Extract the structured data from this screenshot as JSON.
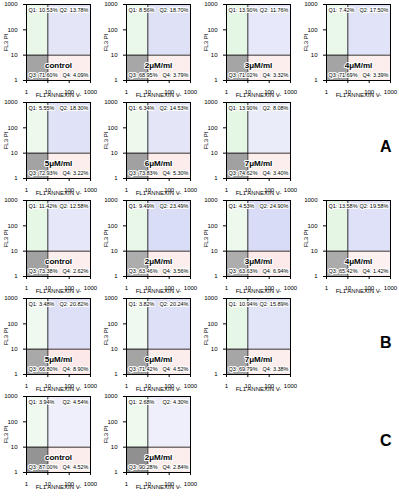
{
  "chart_data": [
    {
      "type": "quadrant",
      "group": "A",
      "title": "control",
      "xlabel": "FL1 ANNEXIN V-",
      "ylabel": "FL3 PI",
      "log": true,
      "xlim": [
        1,
        1000
      ],
      "ylim": [
        1,
        1000
      ],
      "xticks": [
        1,
        10,
        100,
        1000
      ],
      "yticks": [
        1,
        10,
        100,
        1000
      ],
      "gate": [
        10,
        10
      ],
      "categories": [
        "Q1",
        "Q2",
        "Q3",
        "Q4"
      ],
      "values": [
        10.53,
        13.78,
        71.6,
        4.09
      ],
      "value_labels": [
        "Q1: 10.53%",
        "Q2: 13.78%",
        "Q3: 71.60%",
        "Q4: 4.09%"
      ],
      "colors": [
        "#2db82d",
        "#2f3fcc",
        "#222222",
        "#e02020"
      ]
    },
    {
      "type": "quadrant",
      "group": "A",
      "title": "2μM/ml",
      "xlabel": "FL1 ANNEXIN V-",
      "ylabel": "FL3 PI",
      "log": true,
      "xlim": [
        1,
        1000
      ],
      "ylim": [
        1,
        1000
      ],
      "xticks": [
        1,
        10,
        100,
        1000
      ],
      "yticks": [
        1,
        10,
        100,
        1000
      ],
      "gate": [
        10,
        10
      ],
      "categories": [
        "Q1",
        "Q2",
        "Q3",
        "Q4"
      ],
      "values": [
        8.56,
        18.7,
        68.95,
        3.79
      ],
      "value_labels": [
        "Q1: 8.56%",
        "Q2: 18.70%",
        "Q3: 68.95%",
        "Q4: 3.79%"
      ],
      "colors": [
        "#2db82d",
        "#2f3fcc",
        "#222222",
        "#e02020"
      ]
    },
    {
      "type": "quadrant",
      "group": "A",
      "title": "3μM/ml",
      "xlabel": "FL1 ANNEXIN V-",
      "ylabel": "FL3 PI",
      "log": true,
      "xlim": [
        1,
        1000
      ],
      "ylim": [
        1,
        1000
      ],
      "xticks": [
        1,
        10,
        100,
        1000
      ],
      "yticks": [
        1,
        10,
        100,
        1000
      ],
      "gate": [
        10,
        10
      ],
      "categories": [
        "Q1",
        "Q2",
        "Q3",
        "Q4"
      ],
      "values": [
        13.9,
        11.76,
        71.02,
        3.32
      ],
      "value_labels": [
        "Q1: 13.90%",
        "Q2: 11.76%",
        "Q3: 71.02%",
        "Q4: 3.32%"
      ],
      "colors": [
        "#2db82d",
        "#2f3fcc",
        "#222222",
        "#e02020"
      ]
    },
    {
      "type": "quadrant",
      "group": "A",
      "title": "4μM/ml",
      "xlabel": "FL1 ANNEXIN V-",
      "ylabel": "FL3 PI",
      "log": true,
      "xlim": [
        1,
        1000
      ],
      "ylim": [
        1,
        1000
      ],
      "xticks": [
        1,
        10,
        100,
        1000
      ],
      "yticks": [
        1,
        10,
        100,
        1000
      ],
      "gate": [
        10,
        10
      ],
      "categories": [
        "Q1",
        "Q2",
        "Q3",
        "Q4"
      ],
      "values": [
        7.42,
        17.5,
        71.69,
        3.39
      ],
      "value_labels": [
        "Q1: 7.42%",
        "Q2: 17.50%",
        "Q3: 71.69%",
        "Q4: 3.39%"
      ],
      "colors": [
        "#2db82d",
        "#2f3fcc",
        "#222222",
        "#e02020"
      ]
    },
    {
      "type": "quadrant",
      "group": "A",
      "title": "5μM/ml",
      "xlabel": "FL1 ANNEXIN V-",
      "ylabel": "FL3 PI",
      "log": true,
      "xlim": [
        1,
        1000
      ],
      "ylim": [
        1,
        1000
      ],
      "xticks": [
        1,
        10,
        100,
        1000
      ],
      "yticks": [
        1,
        10,
        100,
        1000
      ],
      "gate": [
        10,
        10
      ],
      "categories": [
        "Q1",
        "Q2",
        "Q3",
        "Q4"
      ],
      "values": [
        5.55,
        18.3,
        72.93,
        3.22
      ],
      "value_labels": [
        "Q1: 5.55%",
        "Q2: 18.30%",
        "Q3: 72.93%",
        "Q4: 3.22%"
      ],
      "colors": [
        "#2db82d",
        "#2f3fcc",
        "#222222",
        "#e02020"
      ]
    },
    {
      "type": "quadrant",
      "group": "A",
      "title": "6μM/ml",
      "xlabel": "FL1 ANNEXIN V-",
      "ylabel": "FL3 PI",
      "log": true,
      "xlim": [
        1,
        1000
      ],
      "ylim": [
        1,
        1000
      ],
      "xticks": [
        1,
        10,
        100,
        1000
      ],
      "yticks": [
        1,
        10,
        100,
        1000
      ],
      "gate": [
        10,
        10
      ],
      "categories": [
        "Q1",
        "Q2",
        "Q3",
        "Q4"
      ],
      "values": [
        6.34,
        14.53,
        73.83,
        5.3
      ],
      "value_labels": [
        "Q1: 6.34%",
        "Q2: 14.53%",
        "Q3: 73.83%",
        "Q4: 5.30%"
      ],
      "colors": [
        "#2db82d",
        "#2f3fcc",
        "#222222",
        "#e02020"
      ]
    },
    {
      "type": "quadrant",
      "group": "A",
      "title": "7μM/ml",
      "xlabel": "FL1 ANNEXIN V-",
      "ylabel": "FL3 PI",
      "log": true,
      "xlim": [
        1,
        1000
      ],
      "ylim": [
        1,
        1000
      ],
      "xticks": [
        1,
        10,
        100,
        1000
      ],
      "yticks": [
        1,
        10,
        100,
        1000
      ],
      "gate": [
        10,
        10
      ],
      "categories": [
        "Q1",
        "Q2",
        "Q3",
        "Q4"
      ],
      "values": [
        13.9,
        8.08,
        74.62,
        3.4
      ],
      "value_labels": [
        "Q1: 13.90%",
        "Q2: 8.08%",
        "Q3: 74.62%",
        "Q4: 3.40%"
      ],
      "colors": [
        "#2db82d",
        "#2f3fcc",
        "#222222",
        "#e02020"
      ]
    },
    {
      "type": "quadrant",
      "group": "B",
      "title": "control",
      "xlabel": "FL1 ANNEXIN V-",
      "ylabel": "FL3 PI",
      "log": true,
      "xlim": [
        1,
        1000
      ],
      "ylim": [
        1,
        1000
      ],
      "xticks": [
        1,
        10,
        100,
        1000
      ],
      "yticks": [
        1,
        10,
        100,
        1000
      ],
      "gate": [
        10,
        10
      ],
      "categories": [
        "Q1",
        "Q2",
        "Q3",
        "Q4"
      ],
      "values": [
        11.42,
        12.58,
        73.38,
        2.62
      ],
      "value_labels": [
        "Q1: 11.42%",
        "Q2: 12.58%",
        "Q3: 73.38%",
        "Q4: 2.62%"
      ],
      "colors": [
        "#2db82d",
        "#2f3fcc",
        "#222222",
        "#e02020"
      ]
    },
    {
      "type": "quadrant",
      "group": "B",
      "title": "2μM/ml",
      "xlabel": "FL1 ANNEXIN V-",
      "ylabel": "FL3 PI",
      "log": true,
      "xlim": [
        1,
        1000
      ],
      "ylim": [
        1,
        1000
      ],
      "xticks": [
        1,
        10,
        100,
        1000
      ],
      "yticks": [
        1,
        10,
        100,
        1000
      ],
      "gate": [
        10,
        10
      ],
      "categories": [
        "Q1",
        "Q2",
        "Q3",
        "Q4"
      ],
      "values": [
        9.49,
        23.49,
        63.46,
        3.56
      ],
      "value_labels": [
        "Q1: 9.49%",
        "Q2: 23.49%",
        "Q3: 63.46%",
        "Q4: 3.56%"
      ],
      "colors": [
        "#2db82d",
        "#2f3fcc",
        "#222222",
        "#e02020"
      ]
    },
    {
      "type": "quadrant",
      "group": "B",
      "title": "3μM/ml",
      "xlabel": "FL1 ANNEXIN V-",
      "ylabel": "FL3 PI",
      "log": true,
      "xlim": [
        1,
        1000
      ],
      "ylim": [
        1,
        1000
      ],
      "xticks": [
        1,
        10,
        100,
        1000
      ],
      "yticks": [
        1,
        10,
        100,
        1000
      ],
      "gate": [
        10,
        10
      ],
      "categories": [
        "Q1",
        "Q2",
        "Q3",
        "Q4"
      ],
      "values": [
        4.53,
        24.9,
        63.63,
        6.94
      ],
      "value_labels": [
        "Q1: 4.53%",
        "Q2: 24.90%",
        "Q3: 63.63%",
        "Q4: 6.94%"
      ],
      "colors": [
        "#2db82d",
        "#2f3fcc",
        "#222222",
        "#e02020"
      ]
    },
    {
      "type": "quadrant",
      "group": "B",
      "title": "4μM/ml",
      "xlabel": "FL1 ANNEXIN V-",
      "ylabel": "FL3 PI",
      "log": true,
      "xlim": [
        1,
        1000
      ],
      "ylim": [
        1,
        1000
      ],
      "xticks": [
        1,
        10,
        100,
        1000
      ],
      "yticks": [
        1,
        10,
        100,
        1000
      ],
      "gate": [
        10,
        10
      ],
      "categories": [
        "Q1",
        "Q2",
        "Q3",
        "Q4"
      ],
      "values": [
        13.58,
        19.58,
        65.42,
        1.42
      ],
      "value_labels": [
        "Q1: 13.58%",
        "Q2: 19.58%",
        "Q3: 65.42%",
        "Q4: 1.42%"
      ],
      "colors": [
        "#2db82d",
        "#2f3fcc",
        "#222222",
        "#e02020"
      ]
    },
    {
      "type": "quadrant",
      "group": "B",
      "title": "5μM/ml",
      "xlabel": "FL1 ANNEXIN V-",
      "ylabel": "FL3 PI",
      "log": true,
      "xlim": [
        1,
        1000
      ],
      "ylim": [
        1,
        1000
      ],
      "xticks": [
        1,
        10,
        100,
        1000
      ],
      "yticks": [
        1,
        10,
        100,
        1000
      ],
      "gate": [
        10,
        10
      ],
      "categories": [
        "Q1",
        "Q2",
        "Q3",
        "Q4"
      ],
      "values": [
        3.48,
        20.82,
        66.8,
        8.9
      ],
      "value_labels": [
        "Q1: 3.48%",
        "Q2: 20.82%",
        "Q3: 66.80%",
        "Q4: 8.90%"
      ],
      "colors": [
        "#2db82d",
        "#2f3fcc",
        "#222222",
        "#e02020"
      ]
    },
    {
      "type": "quadrant",
      "group": "B",
      "title": "6μM/ml",
      "xlabel": "FL1 ANNEXIN V-",
      "ylabel": "FL3 PI",
      "log": true,
      "xlim": [
        1,
        1000
      ],
      "ylim": [
        1,
        1000
      ],
      "xticks": [
        1,
        10,
        100,
        1000
      ],
      "yticks": [
        1,
        10,
        100,
        1000
      ],
      "gate": [
        10,
        10
      ],
      "categories": [
        "Q1",
        "Q2",
        "Q3",
        "Q4"
      ],
      "values": [
        3.82,
        20.24,
        71.42,
        4.52
      ],
      "value_labels": [
        "Q1: 3.82%",
        "Q2: 20.24%",
        "Q3: 71.42%",
        "Q4: 4.52%"
      ],
      "colors": [
        "#2db82d",
        "#2f3fcc",
        "#222222",
        "#e02020"
      ]
    },
    {
      "type": "quadrant",
      "group": "B",
      "title": "7μM/ml",
      "xlabel": "FL1 ANNEXIN V-",
      "ylabel": "FL3 PI",
      "log": true,
      "xlim": [
        1,
        1000
      ],
      "ylim": [
        1,
        1000
      ],
      "xticks": [
        1,
        10,
        100,
        1000
      ],
      "yticks": [
        1,
        10,
        100,
        1000
      ],
      "gate": [
        10,
        10
      ],
      "categories": [
        "Q1",
        "Q2",
        "Q3",
        "Q4"
      ],
      "values": [
        10.94,
        15.89,
        69.79,
        3.38
      ],
      "value_labels": [
        "Q1: 10.94%",
        "Q2: 15.89%",
        "Q3: 69.79%",
        "Q4: 3.38%"
      ],
      "colors": [
        "#2db82d",
        "#2f3fcc",
        "#222222",
        "#e02020"
      ]
    },
    {
      "type": "quadrant",
      "group": "C",
      "title": "control",
      "xlabel": "FL1 ANNEXIN V-",
      "ylabel": "FL3 PI",
      "log": true,
      "xlim": [
        1,
        1000
      ],
      "ylim": [
        1,
        1000
      ],
      "xticks": [
        1,
        10,
        100,
        1000
      ],
      "yticks": [
        1,
        10,
        100,
        1000
      ],
      "gate": [
        10,
        10
      ],
      "categories": [
        "Q1",
        "Q2",
        "Q3",
        "Q4"
      ],
      "values": [
        3.94,
        4.54,
        87.0,
        4.52
      ],
      "value_labels": [
        "Q1: 3.94%",
        "Q2: 4.54%",
        "Q3: 87.00%",
        "Q4: 4.52%"
      ],
      "colors": [
        "#2db82d",
        "#2f3fcc",
        "#222222",
        "#e02020"
      ]
    },
    {
      "type": "quadrant",
      "group": "C",
      "title": "2μM/ml",
      "xlabel": "FL1 ANNEXIN V-",
      "ylabel": "FL3 PI",
      "log": true,
      "xlim": [
        1,
        1000
      ],
      "ylim": [
        1,
        1000
      ],
      "xticks": [
        1,
        10,
        100,
        1000
      ],
      "yticks": [
        1,
        10,
        100,
        1000
      ],
      "gate": [
        10,
        10
      ],
      "categories": [
        "Q1",
        "Q2",
        "Q3",
        "Q4"
      ],
      "values": [
        2.68,
        4.3,
        90.28,
        2.84
      ],
      "value_labels": [
        "Q1: 2.68%",
        "Q2: 4.30%",
        "Q3: 90.28%",
        "Q4: 2.84%"
      ],
      "colors": [
        "#2db82d",
        "#2f3fcc",
        "#222222",
        "#e02020"
      ]
    }
  ]
}
